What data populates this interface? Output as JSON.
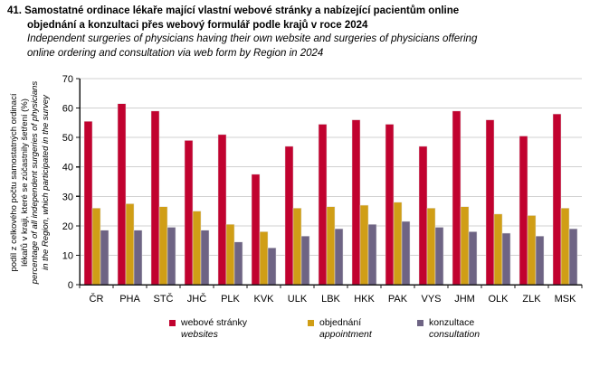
{
  "title": {
    "cs_lines": [
      "41. Samostatné ordinace lékaře mající vlastní webové stránky a nabízející pacientům online",
      "objednání a konzultaci přes webový formulář podle krajů v roce 2024"
    ],
    "en_lines": [
      "Independent surgeries of physicians having their own website and surgeries of physicians offering",
      "online ordering and consultation via web form by Region in 2024"
    ]
  },
  "chart_data": {
    "type": "bar",
    "title": "Samostatné ordinace lékaře mající vlastní webové stránky a nabízející pacientům online objednání a konzultaci přes webový formulář podle krajů v roce 2024",
    "ylabel_cs_lines": [
      "podíl z celkového počtu samostatných ordinací",
      "lékařů v kraji, které se zúčastnily šetření (%)"
    ],
    "ylabel_en_lines": [
      "percentage of all independent surgeries of physicians",
      "in the Region, which participated in the survey"
    ],
    "xlabel": "",
    "categories": [
      "ČR",
      "PHA",
      "STČ",
      "JHČ",
      "PLK",
      "KVK",
      "ULK",
      "LBK",
      "HKK",
      "PAK",
      "VYS",
      "JHM",
      "OLK",
      "ZLK",
      "MSK"
    ],
    "series": [
      {
        "name_cs": "webové stránky",
        "name_en": "websites",
        "color": "#c1022f",
        "values": [
          55.5,
          61.5,
          59,
          49,
          51,
          37.5,
          47,
          54.5,
          56,
          54.5,
          47,
          59,
          56,
          50.5,
          58
        ]
      },
      {
        "name_cs": "objednání",
        "name_en": "appointment",
        "color": "#d09e16",
        "values": [
          26,
          27.5,
          26.5,
          25,
          20.5,
          18,
          26,
          26.5,
          27,
          28,
          26,
          26.5,
          24,
          23.5,
          26
        ]
      },
      {
        "name_cs": "konzultace",
        "name_en": "consultation",
        "color": "#6e6484",
        "values": [
          18.5,
          18.5,
          19.5,
          18.5,
          14.5,
          12.5,
          16.5,
          19,
          20.5,
          21.5,
          19.5,
          18,
          17.5,
          16.5,
          19
        ]
      }
    ],
    "ylim": [
      0,
      70
    ],
    "yticks": [
      0,
      10,
      20,
      30,
      40,
      50,
      60,
      70
    ],
    "grid": true,
    "legend_position": "bottom",
    "colors": {
      "gridline": "#d0d0d0",
      "axis": "#1a1a1a",
      "background": "#ffffff"
    }
  }
}
